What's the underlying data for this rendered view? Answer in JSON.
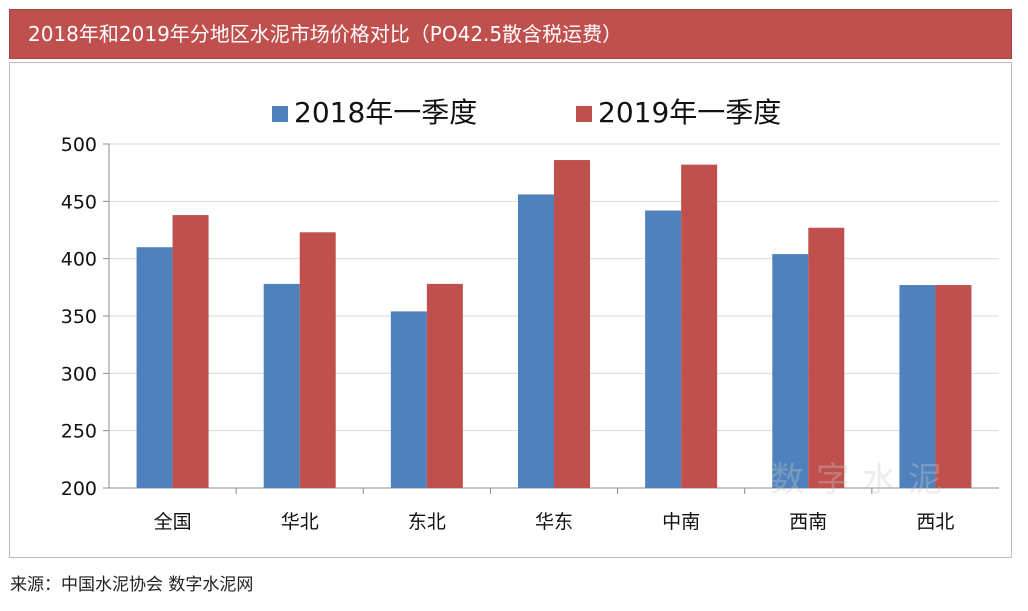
{
  "title": "2018年和2019年分地区水泥市场价格对比（PO42.5散含税运费）",
  "source": "来源：中国水泥协会 数字水泥网",
  "watermark": "数字水泥",
  "colors": {
    "header": "#c0504d",
    "series2018": "#4f81bd",
    "series2019": "#c0504d",
    "grid": "#d9d9d9"
  },
  "chart_data": {
    "type": "bar",
    "categories": [
      "全国",
      "华北",
      "东北",
      "华东",
      "中南",
      "西南",
      "西北"
    ],
    "series": [
      {
        "name": "2018年一季度",
        "values": [
          410,
          378,
          354,
          456,
          442,
          404,
          377
        ]
      },
      {
        "name": "2019年一季度",
        "values": [
          438,
          423,
          378,
          486,
          482,
          427,
          377
        ]
      }
    ],
    "ylim": [
      200,
      500
    ],
    "yticks": [
      200,
      250,
      300,
      350,
      400,
      450,
      500
    ],
    "grid": true,
    "legend": "top-center"
  }
}
